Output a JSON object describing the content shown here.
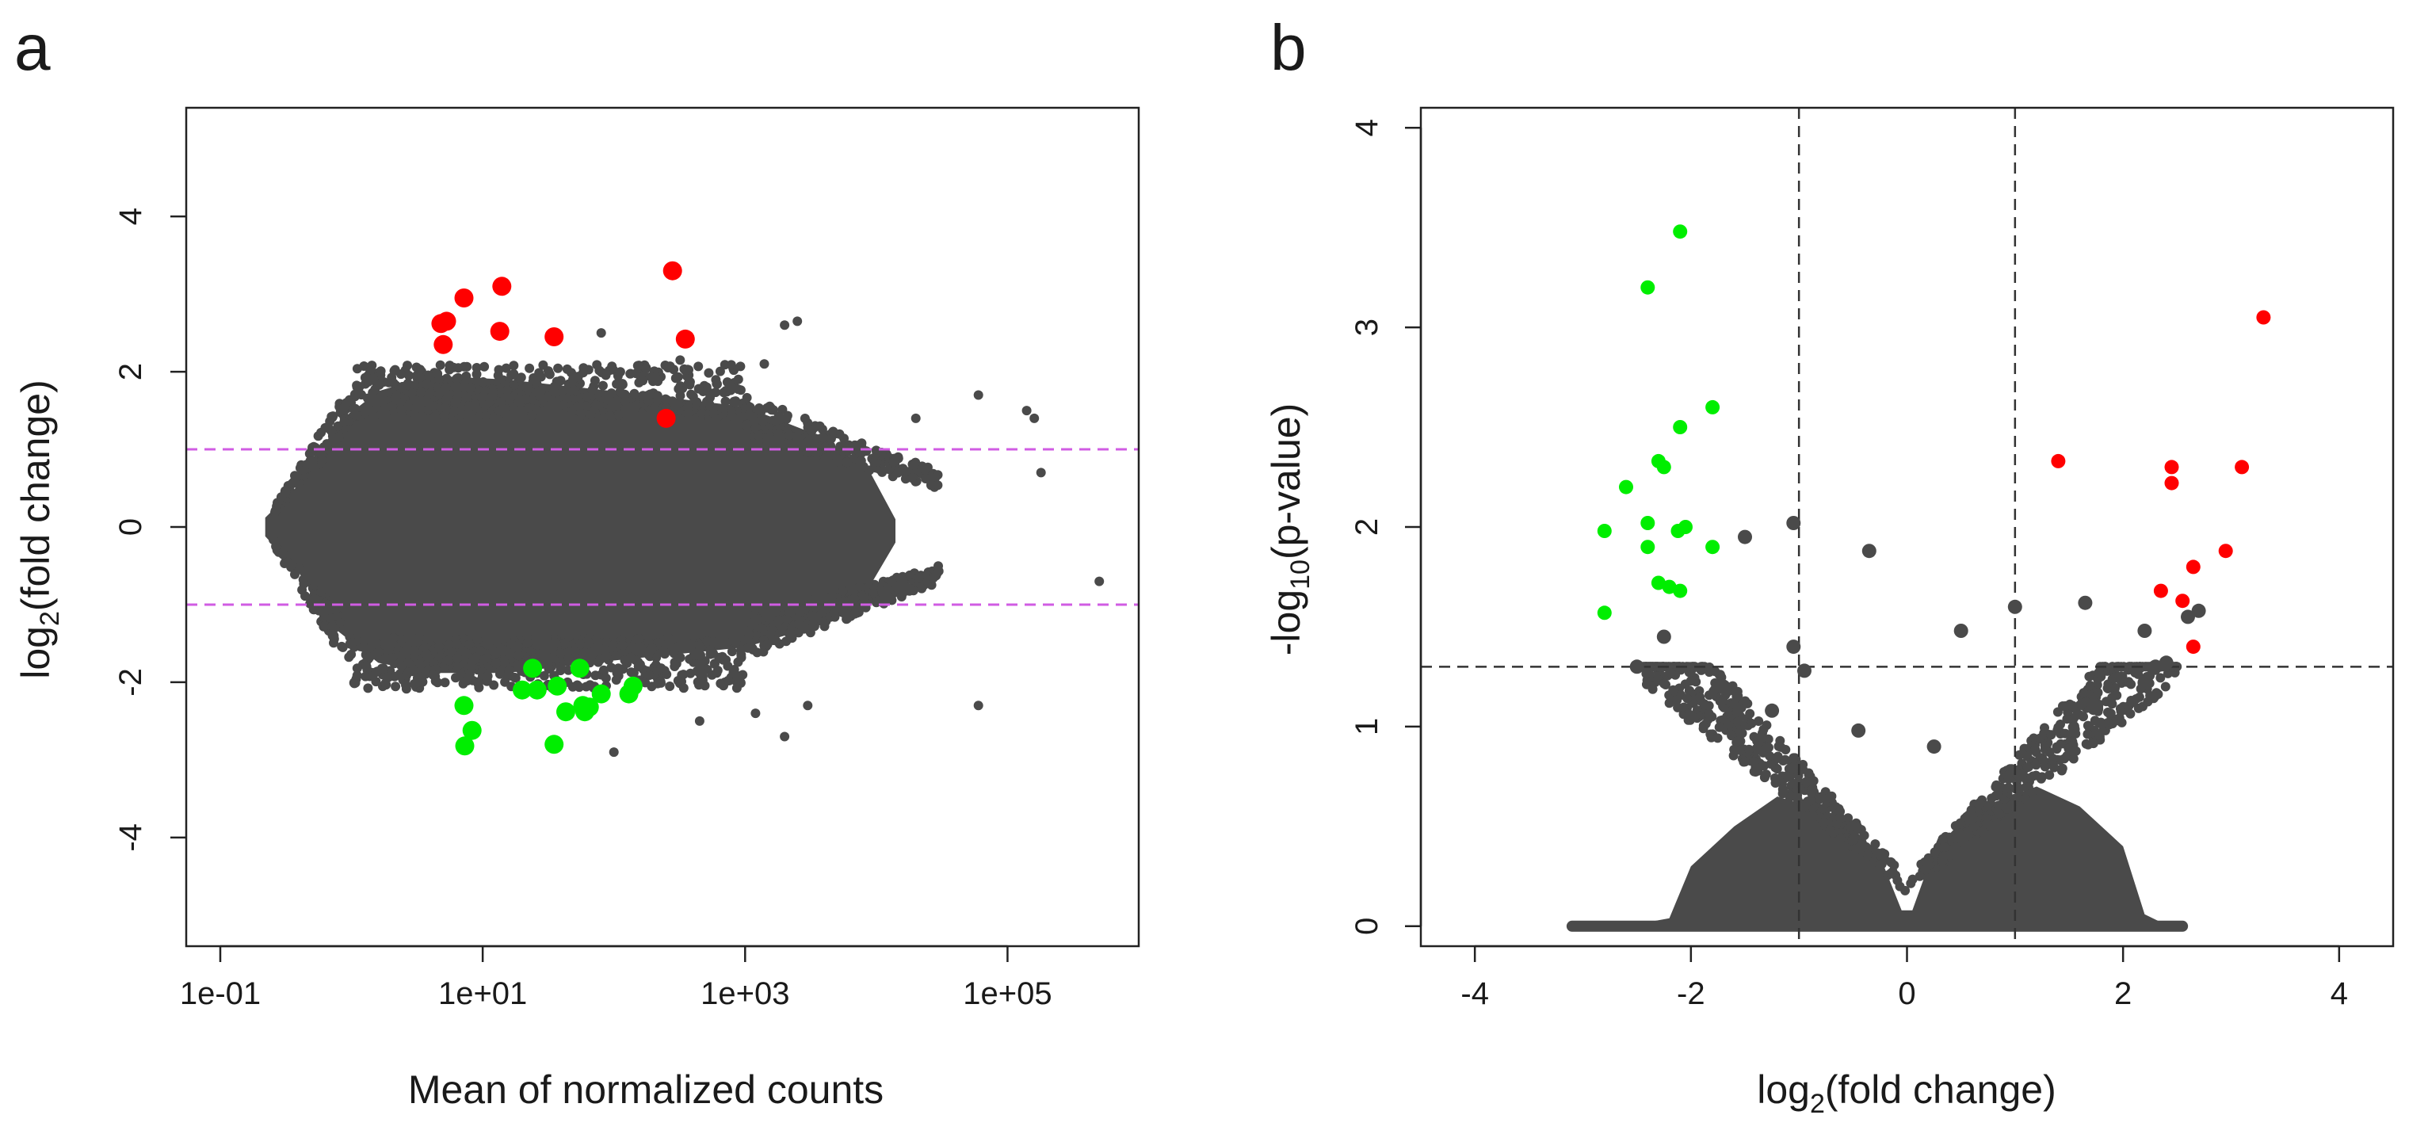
{
  "chart_data": [
    {
      "panel_label": "a",
      "type": "scatter",
      "xlabel": "Mean of normalized counts",
      "ylabel_main": "log",
      "ylabel_sub": "2",
      "ylabel_tail": "(fold change)",
      "x_scale": "log10",
      "xlim": [
        0.055,
        1000000
      ],
      "ylim": [
        -5.4,
        5.4
      ],
      "xticks": [
        0.1,
        10,
        1000,
        100000
      ],
      "xtick_labels": [
        "1e-01",
        "1e+01",
        "1e+03",
        "1e+05"
      ],
      "yticks": [
        -4,
        -2,
        0,
        2,
        4
      ],
      "ytick_labels": [
        "-4",
        "-2",
        "0",
        "2",
        "4"
      ],
      "threshold_lines": {
        "y": [
          1,
          -1
        ],
        "color": "#d05ce3",
        "style": "dashed"
      },
      "background_color": "#4a4a4a",
      "series": [
        {
          "color": "#ff0000",
          "points": [
            [
              4.8,
              2.62
            ],
            [
              5.3,
              2.65
            ],
            [
              5.0,
              2.35
            ],
            [
              7.2,
              2.95
            ],
            [
              14,
              3.1
            ],
            [
              13.5,
              2.52
            ],
            [
              35,
              2.45
            ],
            [
              280,
              3.3
            ],
            [
              350,
              2.42
            ],
            [
              250,
              1.4
            ]
          ]
        },
        {
          "color": "#00ee00",
          "points": [
            [
              7.2,
              -2.3
            ],
            [
              8.3,
              -2.62
            ],
            [
              7.3,
              -2.82
            ],
            [
              20,
              -2.1
            ],
            [
              24,
              -1.82
            ],
            [
              26,
              -2.1
            ],
            [
              37,
              -2.05
            ],
            [
              43,
              -2.38
            ],
            [
              55,
              -1.82
            ],
            [
              58,
              -2.3
            ],
            [
              60,
              -2.38
            ],
            [
              65,
              -2.32
            ],
            [
              80,
              -2.15
            ],
            [
              130,
              -2.15
            ],
            [
              140,
              -2.05
            ],
            [
              35,
              -2.8
            ]
          ]
        },
        {
          "color": "#4a4a4a",
          "points": [
            [
              2000,
              2.6
            ],
            [
              2500,
              2.65
            ],
            [
              1400,
              2.1
            ],
            [
              80,
              2.5
            ],
            [
              320,
              2.15
            ],
            [
              3000,
              -2.3
            ],
            [
              450,
              -2.5
            ],
            [
              1200,
              -2.4
            ],
            [
              2000,
              -2.7
            ],
            [
              60000,
              -2.3
            ],
            [
              500000,
              -0.7
            ],
            [
              180000,
              0.7
            ],
            [
              160000,
              1.4
            ],
            [
              140000,
              1.5
            ],
            [
              60000,
              1.7
            ],
            [
              20000,
              1.4
            ],
            [
              100,
              -2.9
            ]
          ]
        }
      ]
    },
    {
      "panel_label": "b",
      "type": "scatter",
      "xlabel_main": "log",
      "xlabel_sub": "2",
      "xlabel_tail": "(fold change)",
      "ylabel_main": "-log",
      "ylabel_sub": "10",
      "ylabel_tail": "(p-value)",
      "xlim": [
        -4.5,
        4.5
      ],
      "ylim": [
        -0.1,
        4.1
      ],
      "xticks": [
        -4,
        -2,
        0,
        2,
        4
      ],
      "xtick_labels": [
        "-4",
        "-2",
        "0",
        "2",
        "4"
      ],
      "yticks": [
        0,
        1,
        2,
        3,
        4
      ],
      "ytick_labels": [
        "0",
        "1",
        "2",
        "3",
        "4"
      ],
      "threshold_lines": {
        "x": [
          -1,
          1
        ],
        "y": [
          1.3
        ],
        "color": "#333333",
        "style": "dashed"
      },
      "background_color": "#4a4a4a",
      "series": [
        {
          "color": "#00ee00",
          "points": [
            [
              -2.1,
              3.48
            ],
            [
              -2.4,
              3.2
            ],
            [
              -1.8,
              2.6
            ],
            [
              -2.1,
              2.5
            ],
            [
              -2.3,
              2.33
            ],
            [
              -2.25,
              2.3
            ],
            [
              -2.6,
              2.2
            ],
            [
              -2.4,
              2.02
            ],
            [
              -2.05,
              2.0
            ],
            [
              -2.12,
              1.98
            ],
            [
              -2.8,
              1.98
            ],
            [
              -2.4,
              1.9
            ],
            [
              -1.8,
              1.9
            ],
            [
              -2.3,
              1.72
            ],
            [
              -2.2,
              1.7
            ],
            [
              -2.1,
              1.68
            ],
            [
              -2.8,
              1.57
            ]
          ]
        },
        {
          "color": "#ff0000",
          "points": [
            [
              3.3,
              3.05
            ],
            [
              1.4,
              2.33
            ],
            [
              2.45,
              2.3
            ],
            [
              3.1,
              2.3
            ],
            [
              2.45,
              2.22
            ],
            [
              2.95,
              1.88
            ],
            [
              2.65,
              1.8
            ],
            [
              2.35,
              1.68
            ],
            [
              2.55,
              1.63
            ],
            [
              2.65,
              1.4
            ]
          ]
        },
        {
          "color": "#4a4a4a",
          "points": [
            [
              -1.5,
              1.95
            ],
            [
              -1.05,
              2.02
            ],
            [
              -0.35,
              1.88
            ],
            [
              0.5,
              1.48
            ],
            [
              1.0,
              1.6
            ],
            [
              1.65,
              1.62
            ],
            [
              2.2,
              1.48
            ],
            [
              2.6,
              1.55
            ],
            [
              2.7,
              1.58
            ],
            [
              -2.25,
              1.45
            ],
            [
              -1.05,
              1.4
            ],
            [
              -2.5,
              1.3
            ],
            [
              -1.7,
              1.2
            ],
            [
              -1.25,
              1.08
            ],
            [
              -0.95,
              1.28
            ],
            [
              -0.45,
              0.98
            ],
            [
              1.75,
              1.1
            ],
            [
              2.2,
              1.22
            ],
            [
              2.4,
              1.32
            ],
            [
              2.3,
              1.3
            ],
            [
              0.25,
              0.9
            ]
          ]
        }
      ]
    }
  ]
}
